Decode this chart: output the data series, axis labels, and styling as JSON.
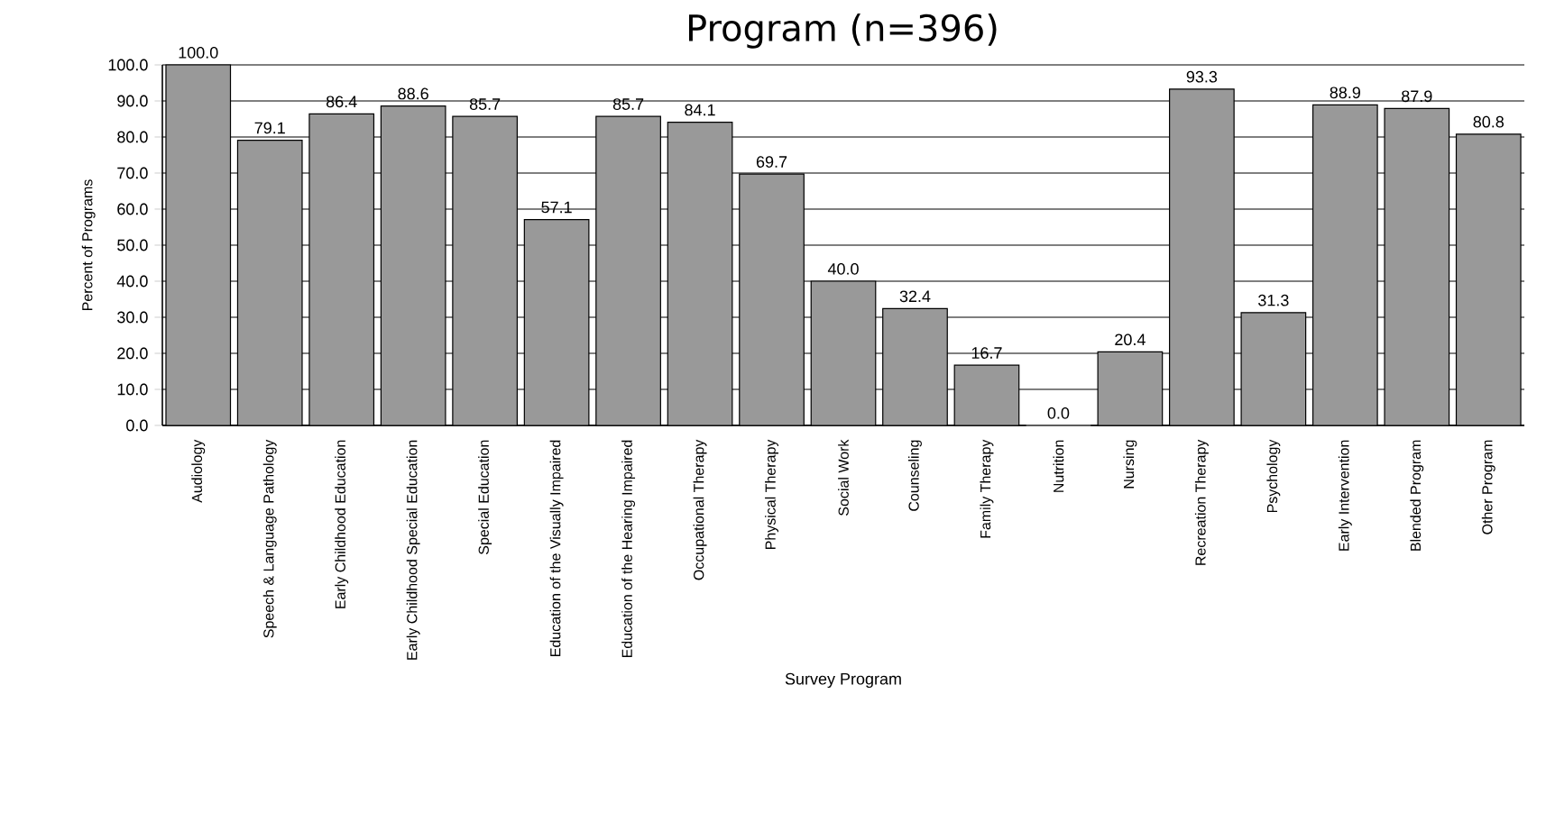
{
  "chart_data": {
    "type": "bar",
    "title": "Program (n=396)",
    "xlabel": "Survey Program",
    "ylabel": "Percent of Programs",
    "categories": [
      "Audiology",
      "Speech & Language Pathology",
      "Early Childhood Education",
      "Early Childhood Special Education",
      "Special Education",
      "Education of the Visually Impaired",
      "Education of the Hearing Impaired",
      "Occupational Therapy",
      "Physical Therapy",
      "Social Work",
      "Counseling",
      "Family Therapy",
      "Nutrition",
      "Nursing",
      "Recreation Therapy",
      "Psychology",
      "Early Intervention",
      "Blended Program",
      "Other Program"
    ],
    "values": [
      100.0,
      79.1,
      86.4,
      88.6,
      85.7,
      57.1,
      85.7,
      84.1,
      69.7,
      40.0,
      32.4,
      16.7,
      0.0,
      20.4,
      93.3,
      31.3,
      88.9,
      87.9,
      80.8
    ],
    "color": "#999999",
    "ylim": [
      0,
      100
    ],
    "yticks": [
      {
        "value": 0,
        "label": "0.0"
      },
      {
        "value": 10,
        "label": "10.0"
      },
      {
        "value": 20,
        "label": "20.0"
      },
      {
        "value": 30,
        "label": "30.0"
      },
      {
        "value": 40,
        "label": "40.0"
      },
      {
        "value": 50,
        "label": "50.0"
      },
      {
        "value": 60,
        "label": "60.0"
      },
      {
        "value": 70,
        "label": "70.0"
      },
      {
        "value": 80,
        "label": "80.0"
      },
      {
        "value": 90,
        "label": "90.0"
      },
      {
        "value": 100,
        "label": "100.0"
      }
    ],
    "value_labels": [
      "100.0",
      "79.1",
      "86.4",
      "88.6",
      "85.7",
      "57.1",
      "85.7",
      "84.1",
      "69.7",
      "40.0",
      "32.4",
      "16.7",
      "0.0",
      "20.4",
      "93.3",
      "31.3",
      "88.9",
      "87.9",
      "80.8"
    ],
    "grid": "y"
  }
}
